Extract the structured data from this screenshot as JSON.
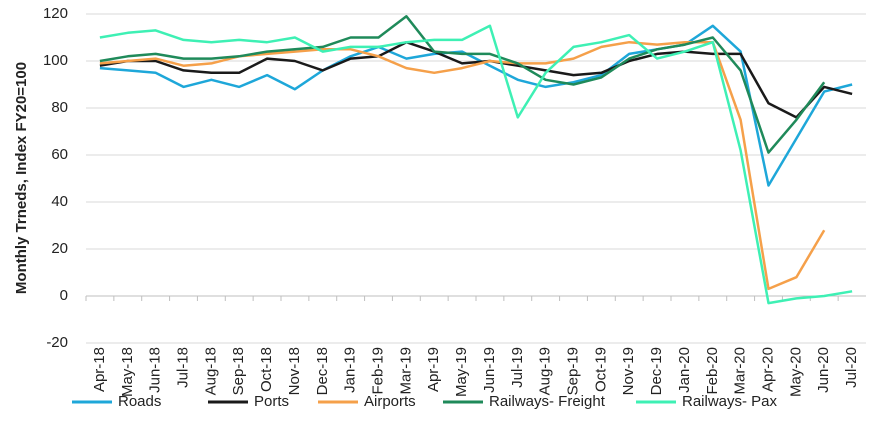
{
  "chart_data": {
    "type": "line",
    "y_label": "Monthly Trneds, Index FY20=100",
    "categories": [
      "Apr-18",
      "May-18",
      "Jun-18",
      "Jul-18",
      "Aug-18",
      "Sep-18",
      "Oct-18",
      "Nov-18",
      "Dec-18",
      "Jan-19",
      "Feb-19",
      "Mar-19",
      "Apr-19",
      "May-19",
      "Jun-19",
      "Jul-19",
      "Aug-19",
      "Sep-19",
      "Oct-19",
      "Nov-19",
      "Dec-19",
      "Jan-20",
      "Feb-20",
      "Mar-20",
      "Apr-20",
      "May-20",
      "Jun-20",
      "Jul-20"
    ],
    "series": [
      {
        "name": "Roads",
        "color": "#1ea7d9",
        "values": [
          97,
          96,
          95,
          89,
          92,
          89,
          94,
          88,
          96,
          102,
          106,
          101,
          103,
          104,
          98,
          92,
          89,
          91,
          94,
          103,
          105,
          107,
          115,
          104,
          47,
          67,
          87,
          90
        ]
      },
      {
        "name": "Ports",
        "color": "#1a1a1a",
        "values": [
          98,
          100,
          100,
          96,
          95,
          95,
          101,
          100,
          96,
          101,
          102,
          108,
          104,
          99,
          100,
          98,
          96,
          94,
          95,
          100,
          103,
          104,
          103,
          103,
          82,
          76,
          89,
          86
        ]
      },
      {
        "name": "Airports",
        "color": "#f5a04a",
        "values": [
          99,
          100,
          101,
          98,
          99,
          102,
          103,
          104,
          105,
          105,
          102,
          97,
          95,
          97,
          100,
          99,
          99,
          101,
          106,
          108,
          107,
          108,
          108,
          75,
          3,
          8,
          28,
          null
        ]
      },
      {
        "name": "Railways- Freight",
        "color": "#1f8a5a",
        "values": [
          100,
          102,
          103,
          101,
          101,
          102,
          104,
          105,
          106,
          110,
          110,
          119,
          104,
          103,
          103,
          99,
          92,
          90,
          93,
          101,
          105,
          107,
          110,
          96,
          61,
          75,
          91,
          null
        ]
      },
      {
        "name": "Railways- Pax",
        "color": "#3ef0b4",
        "values": [
          110,
          112,
          113,
          109,
          108,
          109,
          108,
          110,
          104,
          106,
          106,
          108,
          109,
          109,
          115,
          76,
          95,
          106,
          108,
          111,
          101,
          104,
          108,
          62,
          -3,
          -1,
          0,
          2
        ]
      }
    ],
    "ylim": [
      -20,
      120
    ],
    "yticks": [
      -20,
      0,
      20,
      40,
      60,
      80,
      100,
      120
    ],
    "grid": true
  }
}
